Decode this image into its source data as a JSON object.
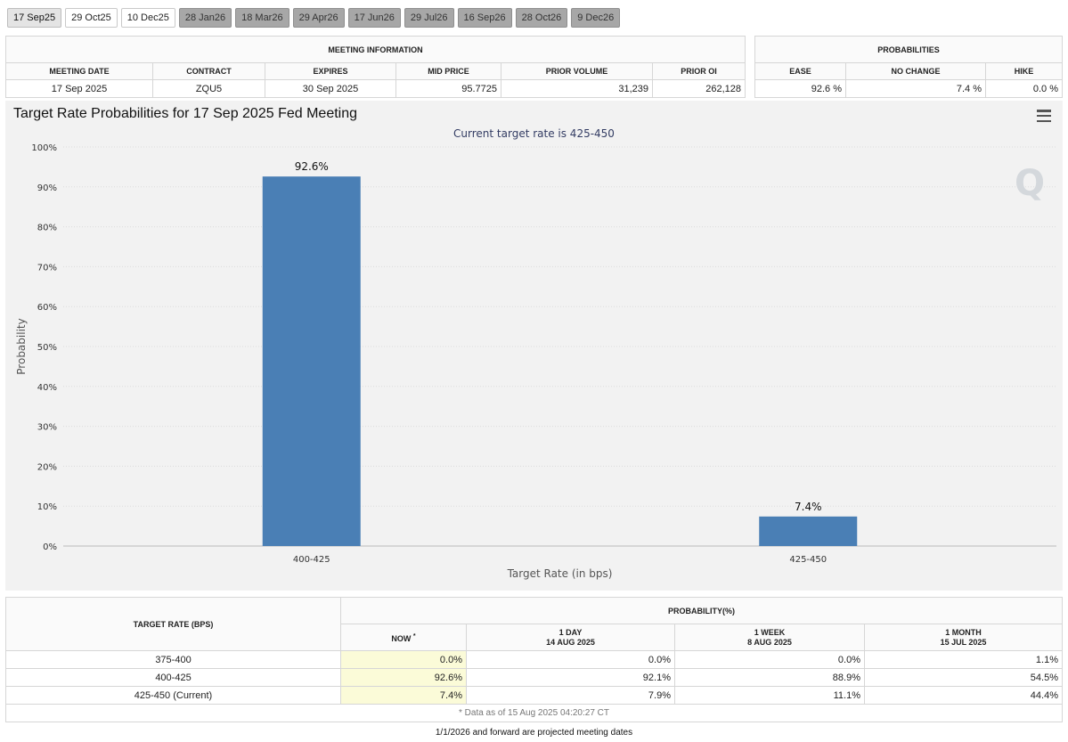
{
  "tabs": [
    {
      "label": "17 Sep25",
      "state": "active"
    },
    {
      "label": "29 Oct25",
      "state": "plain"
    },
    {
      "label": "10 Dec25",
      "state": "plain"
    },
    {
      "label": "28 Jan26",
      "state": "future"
    },
    {
      "label": "18 Mar26",
      "state": "future"
    },
    {
      "label": "29 Apr26",
      "state": "future"
    },
    {
      "label": "17 Jun26",
      "state": "future"
    },
    {
      "label": "29 Jul26",
      "state": "future"
    },
    {
      "label": "16 Sep26",
      "state": "future"
    },
    {
      "label": "28 Oct26",
      "state": "future"
    },
    {
      "label": "9 Dec26",
      "state": "future"
    }
  ],
  "meeting_info": {
    "title": "MEETING INFORMATION",
    "headers": [
      "MEETING DATE",
      "CONTRACT",
      "EXPIRES",
      "MID PRICE",
      "PRIOR VOLUME",
      "PRIOR OI"
    ],
    "values": [
      "17 Sep 2025",
      "ZQU5",
      "30 Sep 2025",
      "95.7725",
      "31,239",
      "262,128"
    ]
  },
  "probabilities": {
    "title": "PROBABILITIES",
    "headers": [
      "EASE",
      "NO CHANGE",
      "HIKE"
    ],
    "values": [
      "92.6 %",
      "7.4 %",
      "0.0 %"
    ]
  },
  "chart_data": {
    "type": "bar",
    "title": "Target Rate Probabilities for 17 Sep 2025 Fed Meeting",
    "subtitle": "Current target rate is 425-450",
    "categories": [
      "400-425",
      "425-450"
    ],
    "values": [
      92.6,
      7.4
    ],
    "data_labels": [
      "92.6%",
      "7.4%"
    ],
    "xlabel": "Target Rate (in bps)",
    "ylabel": "Probability",
    "ylim": [
      0,
      100
    ],
    "yticks": [
      "0%",
      "10%",
      "20%",
      "30%",
      "40%",
      "50%",
      "60%",
      "70%",
      "80%",
      "90%",
      "100%"
    ],
    "grid": true,
    "bar_color": "#4a7fb5"
  },
  "prob_table": {
    "col_target": "TARGET RATE (BPS)",
    "col_prob": "PROBABILITY(%)",
    "sub_now": "NOW",
    "sub_now_mark": "*",
    "sub_1day": "1 DAY",
    "sub_1day_date": "14 AUG 2025",
    "sub_1week": "1 WEEK",
    "sub_1week_date": "8 AUG 2025",
    "sub_1month": "1 MONTH",
    "sub_1month_date": "15 JUL 2025",
    "rows": [
      {
        "rate": "375-400",
        "now": "0.0%",
        "day": "0.0%",
        "week": "0.0%",
        "month": "1.1%"
      },
      {
        "rate": "400-425",
        "now": "92.6%",
        "day": "92.1%",
        "week": "88.9%",
        "month": "54.5%"
      },
      {
        "rate": "425-450 (Current)",
        "now": "7.4%",
        "day": "7.9%",
        "week": "11.1%",
        "month": "44.4%"
      }
    ],
    "footnote": "* Data as of 15 Aug 2025 04:20:27 CT"
  },
  "projection_note": "1/1/2026 and forward are projected meeting dates",
  "logo": "Q"
}
